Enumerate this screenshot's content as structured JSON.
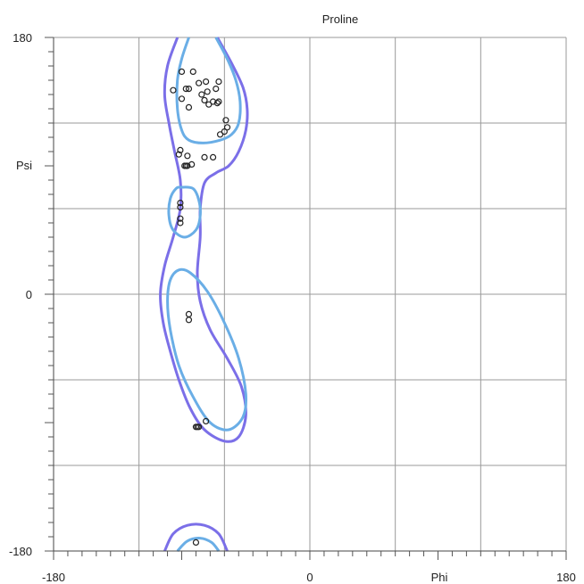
{
  "chart_data": {
    "type": "scatter",
    "title": "Proline",
    "xlabel": "Phi",
    "ylabel": "Psi",
    "xlim": [
      -180,
      180
    ],
    "ylim": [
      -180,
      180
    ],
    "x_tick_labels": [
      "-180",
      "0",
      "180"
    ],
    "y_tick_labels": [
      "180",
      "0",
      "-180"
    ],
    "grid": true,
    "series": [
      {
        "points": [
          [
            -90,
            156
          ],
          [
            -82,
            156
          ],
          [
            -78,
            148
          ],
          [
            -73,
            149
          ],
          [
            -64,
            149
          ],
          [
            -96,
            143
          ],
          [
            -87,
            144
          ],
          [
            -85,
            144
          ],
          [
            -76,
            140
          ],
          [
            -72,
            142
          ],
          [
            -66,
            144
          ],
          [
            -90,
            137
          ],
          [
            -74,
            136
          ],
          [
            -71,
            133
          ],
          [
            -68,
            135
          ],
          [
            -65,
            134
          ],
          [
            -64,
            135
          ],
          [
            -85,
            131
          ],
          [
            -59,
            122
          ],
          [
            -58,
            117
          ],
          [
            -60,
            114
          ],
          [
            -63,
            112
          ],
          [
            -91,
            101
          ],
          [
            -92,
            98
          ],
          [
            -86,
            97
          ],
          [
            -74,
            96
          ],
          [
            -68,
            96
          ],
          [
            -88,
            90
          ],
          [
            -87,
            90
          ],
          [
            -86,
            90
          ],
          [
            -83,
            91
          ],
          [
            -91,
            64
          ],
          [
            -91,
            61
          ],
          [
            -91,
            53
          ],
          [
            -91,
            50
          ],
          [
            -85,
            -14
          ],
          [
            -85,
            -18
          ],
          [
            -73,
            -89
          ],
          [
            -78,
            -93
          ],
          [
            -79,
            -93
          ],
          [
            -80,
            -93
          ],
          [
            -80,
            -174
          ]
        ]
      }
    ],
    "contour_colors": {
      "outer": "#7b6fe8",
      "inner": "#6aaee6",
      "points": "#222222",
      "grid": "#9a9a9a"
    }
  }
}
